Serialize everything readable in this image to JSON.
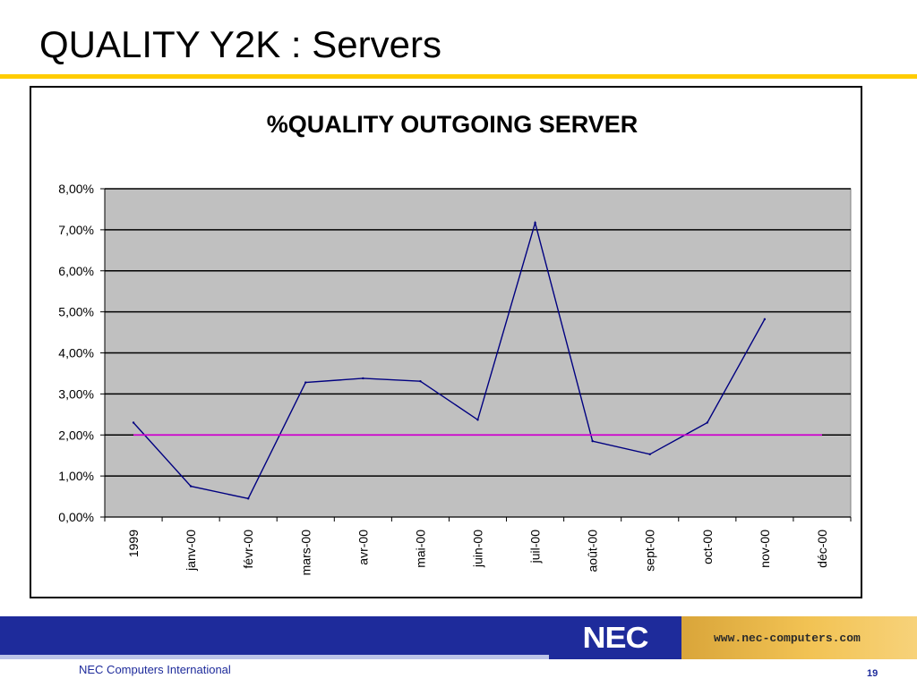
{
  "slide": {
    "title": "QUALITY Y2K : Servers",
    "company": "NEC Computers International",
    "page_number": "19",
    "logo_text": "NEC",
    "url": "www.nec-computers.com"
  },
  "colors": {
    "title_rule": "#ffcc00",
    "footer_band": "#1e2b9b",
    "plot_background": "#c0c0c0",
    "series_line": "#000080",
    "target_line": "#cc00cc"
  },
  "chart_data": {
    "type": "line",
    "title": "%QUALITY OUTGOING SERVER",
    "xlabel": "",
    "ylabel": "",
    "categories": [
      "1999",
      "janv-00",
      "févr-00",
      "mars-00",
      "avr-00",
      "mai-00",
      "juin-00",
      "juil-00",
      "août-00",
      "sept-00",
      "oct-00",
      "nov-00",
      "déc-00"
    ],
    "y_ticks": [
      "0,00%",
      "1,00%",
      "2,00%",
      "3,00%",
      "4,00%",
      "5,00%",
      "6,00%",
      "7,00%",
      "8,00%"
    ],
    "ylim": [
      0,
      8
    ],
    "grid": true,
    "legend": "none",
    "series": [
      {
        "values": [
          2.3,
          0.75,
          0.45,
          3.28,
          3.38,
          3.31,
          2.37,
          7.17,
          1.85,
          1.53,
          2.3,
          4.82,
          null
        ],
        "color": "#000080"
      },
      {
        "values": [
          2.0,
          2.0,
          2.0,
          2.0,
          2.0,
          2.0,
          2.0,
          2.0,
          2.0,
          2.0,
          2.0,
          2.0,
          2.0
        ],
        "color": "#cc00cc"
      }
    ]
  }
}
